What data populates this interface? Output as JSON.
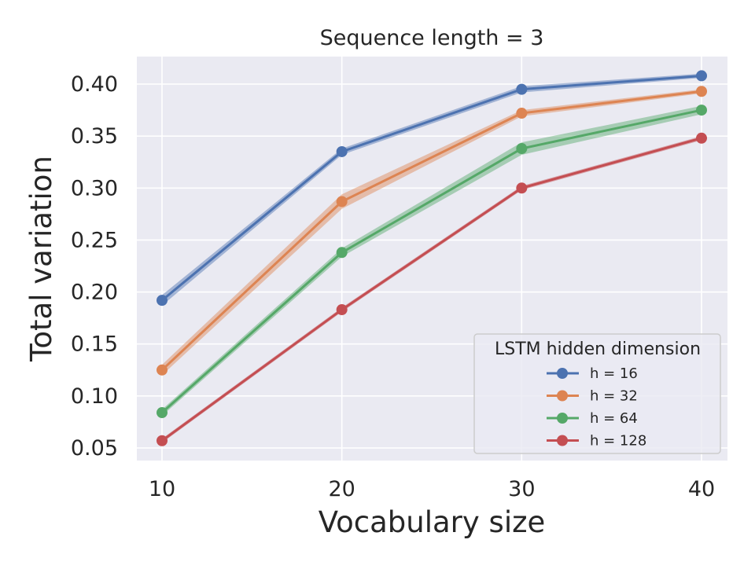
{
  "chart_data": {
    "type": "line",
    "title": "Sequence length = 3",
    "xlabel": "Vocabulary size",
    "ylabel": "Total variation",
    "x": [
      10,
      20,
      30,
      40
    ],
    "xticks": [
      "10",
      "20",
      "30",
      "40"
    ],
    "yticks": [
      "0.05",
      "0.10",
      "0.15",
      "0.20",
      "0.25",
      "0.30",
      "0.35",
      "0.40"
    ],
    "ylim": [
      0.037,
      0.427
    ],
    "grid": true,
    "legend": {
      "title": "LSTM hidden dimension",
      "position": "lower right"
    },
    "series": [
      {
        "name": "h = 16",
        "color": "#4c72b0",
        "values": [
          0.192,
          0.335,
          0.395,
          0.408
        ],
        "band": [
          0.005,
          0.003,
          0.003,
          0.002
        ]
      },
      {
        "name": "h = 32",
        "color": "#dd8452",
        "values": [
          0.125,
          0.287,
          0.372,
          0.393
        ],
        "band": [
          0.005,
          0.007,
          0.003,
          0.002
        ]
      },
      {
        "name": "h = 64",
        "color": "#55a868",
        "values": [
          0.084,
          0.238,
          0.338,
          0.375
        ],
        "band": [
          0.003,
          0.004,
          0.006,
          0.004
        ]
      },
      {
        "name": "h = 128",
        "color": "#c44e52",
        "values": [
          0.057,
          0.183,
          0.3,
          0.348
        ],
        "band": [
          0.002,
          0.002,
          0.002,
          0.002
        ]
      }
    ]
  }
}
